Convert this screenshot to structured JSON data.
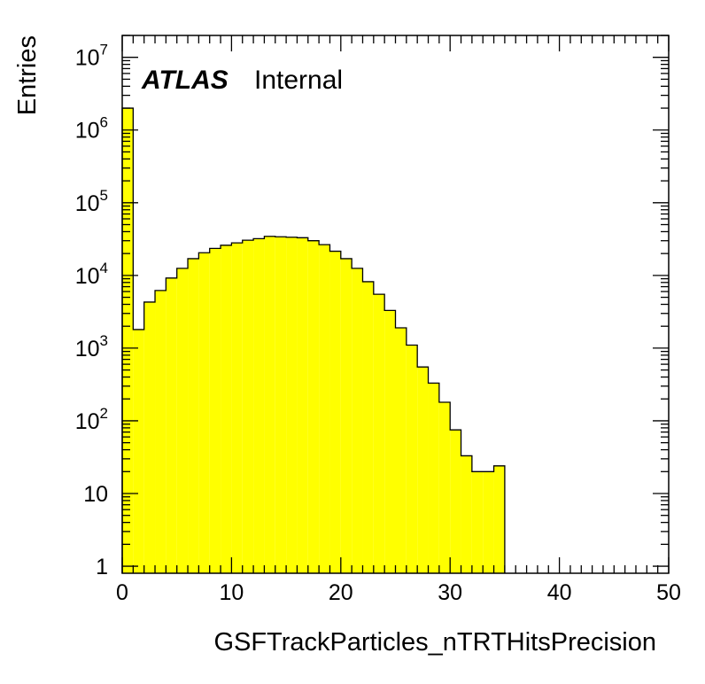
{
  "chart_data": {
    "type": "bar",
    "xlabel": "GSFTrackParticles_nTRTHitsPrecision",
    "ylabel": "Entries",
    "xlim": [
      0,
      50
    ],
    "ylim": [
      0.8,
      20000000
    ],
    "yscale": "log",
    "bin_width": 1,
    "fill_color": "#ffff00",
    "line_color": "#000000",
    "x": [
      0,
      1,
      2,
      3,
      4,
      5,
      6,
      7,
      8,
      9,
      10,
      11,
      12,
      13,
      14,
      15,
      16,
      17,
      18,
      19,
      20,
      21,
      22,
      23,
      24,
      25,
      26,
      27,
      28,
      29,
      30,
      31,
      32,
      33,
      34,
      35,
      36,
      37,
      38,
      39,
      40,
      41,
      42,
      43,
      44,
      45,
      46,
      47,
      48,
      49
    ],
    "values": [
      2000000,
      1800,
      4300,
      6200,
      9200,
      12500,
      17000,
      20500,
      23500,
      26000,
      28000,
      30500,
      32000,
      34500,
      34000,
      33500,
      33000,
      30000,
      26500,
      21500,
      17000,
      12500,
      8200,
      5500,
      3300,
      1900,
      1100,
      550,
      330,
      180,
      75,
      33,
      20,
      20,
      24,
      0,
      0,
      0,
      0,
      0,
      0,
      0,
      0,
      0,
      0,
      0,
      0,
      0,
      0,
      0
    ],
    "x_ticks": [
      0,
      10,
      20,
      30,
      40,
      50
    ],
    "x_tick_labels": [
      "0",
      "10",
      "20",
      "30",
      "40",
      "50"
    ],
    "y_ticks": [
      1,
      10,
      100,
      1000,
      10000,
      100000,
      1000000,
      10000000
    ],
    "y_tick_labels": [
      {
        "base": "1",
        "exp": ""
      },
      {
        "base": "10",
        "exp": ""
      },
      {
        "base": "10",
        "exp": "2"
      },
      {
        "base": "10",
        "exp": "3"
      },
      {
        "base": "10",
        "exp": "4"
      },
      {
        "base": "10",
        "exp": "5"
      },
      {
        "base": "10",
        "exp": "6"
      },
      {
        "base": "10",
        "exp": "7"
      }
    ],
    "label_main": "ATLAS",
    "label_sub": "Internal",
    "grid": false
  }
}
